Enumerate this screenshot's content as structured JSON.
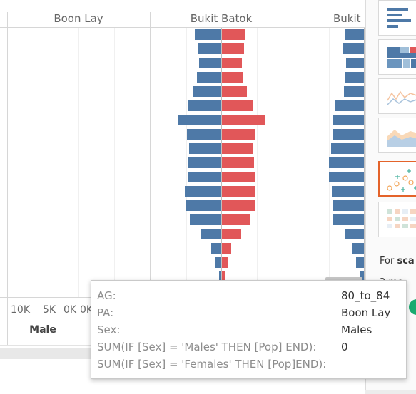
{
  "panes": [
    {
      "name": "Boon Lay"
    },
    {
      "name": "Bukit Batok"
    },
    {
      "name": "Bukit M"
    }
  ],
  "axis": {
    "ticks": [
      "10K",
      "5K",
      "0K",
      "0K"
    ],
    "title": "Male"
  },
  "colors": {
    "male": "#4e79a7",
    "female": "#e15759",
    "selected": "#e4632a",
    "ok": "#1aab70"
  },
  "chart_data": [
    {
      "type": "bar",
      "pane": "Bukit Batok",
      "orientation": "horizontal",
      "series": [
        {
          "name": "Males",
          "values": [
            7200,
            6500,
            6100,
            6700,
            7900,
            9300,
            11800,
            9500,
            8800,
            9200,
            9000,
            10100,
            9700,
            8700,
            5500,
            2800,
            1700,
            600
          ]
        },
        {
          "name": "Females",
          "values": [
            6400,
            6000,
            5500,
            5900,
            6900,
            8600,
            11800,
            9100,
            8500,
            8900,
            9000,
            9200,
            9300,
            7800,
            5300,
            2500,
            1600,
            800
          ]
        }
      ]
    },
    {
      "type": "bar",
      "pane": "Bukit M",
      "orientation": "horizontal",
      "series": [
        {
          "name": "Males",
          "values": [
            5200,
            5800,
            5000,
            5400,
            5600,
            8000,
            8600,
            8600,
            9000,
            9600,
            9600,
            8800,
            8600,
            8400,
            5300,
            3300,
            2200,
            1100
          ]
        },
        {
          "name": "Females",
          "values": [
            200,
            200,
            200,
            200,
            200,
            200,
            200,
            200,
            200,
            200,
            200,
            200,
            200,
            200,
            200,
            200,
            200,
            200
          ]
        }
      ]
    }
  ],
  "sidebar": {
    "thumbnails": [
      {
        "name": "horizontal-bars-thumbnail"
      },
      {
        "name": "treemap-thumbnail"
      },
      {
        "name": "line-thumbnail"
      },
      {
        "name": "area-thumbnail"
      },
      {
        "name": "scatter-thumbnail",
        "selected": true
      },
      {
        "name": "highlight-table-thumbnail"
      }
    ],
    "for_prefix": "For ",
    "for_bold": "sca",
    "more": "2 mo"
  },
  "tooltip": {
    "rows": [
      {
        "label": "AG:",
        "value": "80_to_84"
      },
      {
        "label": "PA:",
        "value": "Boon Lay"
      },
      {
        "label": "Sex:",
        "value": "Males"
      },
      {
        "label": "SUM(IF [Sex] = 'Males' THEN [Pop] END):",
        "value": "0"
      },
      {
        "label": "SUM(IF [Sex] = 'Females' THEN [Pop]END):",
        "value": ""
      }
    ]
  }
}
